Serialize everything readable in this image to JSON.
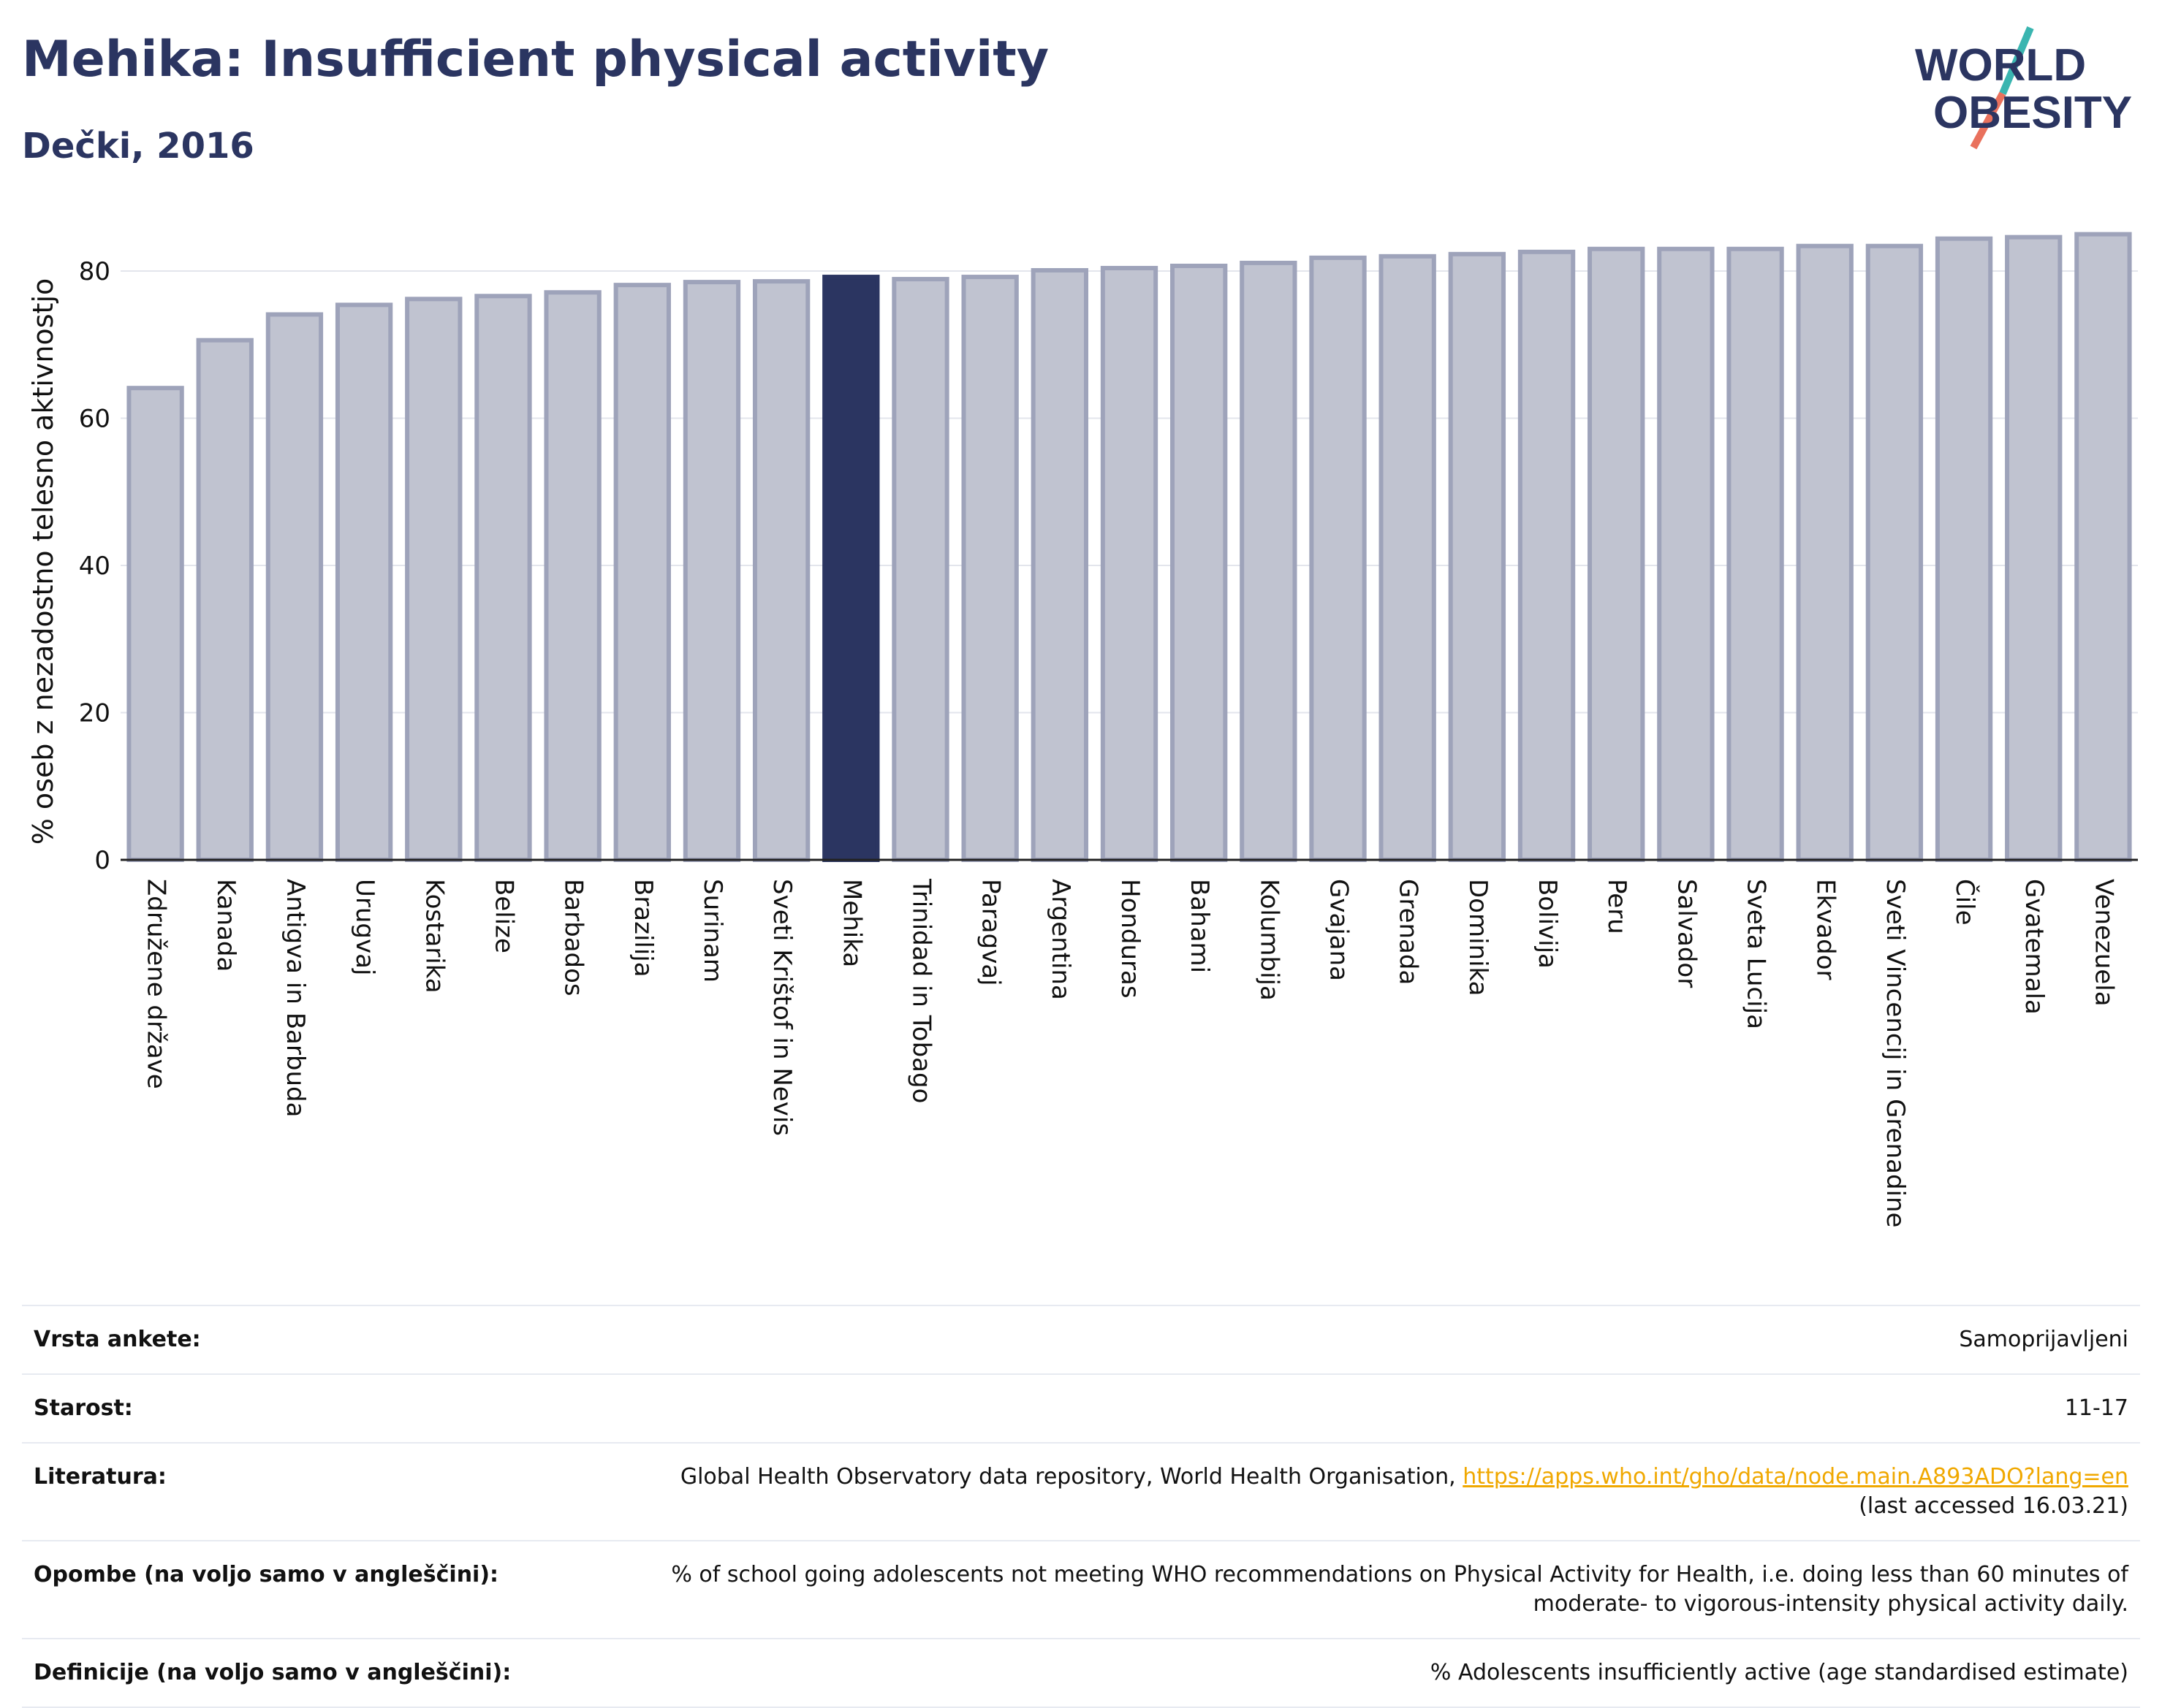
{
  "header": {
    "title": "Mehika: Insufficient physical activity",
    "subtitle": "Dečki, 2016"
  },
  "logo": {
    "line1": "WORLD",
    "line2": "OBESITY",
    "text_color": "#2b3561",
    "slash_teal": "#3ab5b0",
    "slash_coral": "#e9715d"
  },
  "colors": {
    "bar_default": "#c0c3d0",
    "bar_border": "#9ea3ba",
    "bar_highlight": "#2b3561",
    "axis_text": "#111111"
  },
  "chart_data": {
    "type": "bar",
    "ylabel": "% oseb z nezadostno telesno aktivnostjo",
    "ylim": [
      0,
      85
    ],
    "yticks": [
      0,
      20,
      40,
      60,
      80
    ],
    "grid": true,
    "highlight": "Mehika",
    "categories": [
      "Združene države",
      "Kanada",
      "Antigva in Barbuda",
      "Urugvaj",
      "Kostarika",
      "Belize",
      "Barbados",
      "Brazilija",
      "Surinam",
      "Sveti Krištof in Nevis",
      "Mehika",
      "Trinidad in Tobago",
      "Paragvaj",
      "Argentina",
      "Honduras",
      "Bahami",
      "Kolumbija",
      "Gvajana",
      "Grenada",
      "Dominika",
      "Bolivija",
      "Peru",
      "Salvador",
      "Sveta Lucija",
      "Ekvador",
      "Sveti Vincencij in Grenadine",
      "Čile",
      "Gvatemala",
      "Venezuela"
    ],
    "values": [
      64.1,
      70.6,
      74.1,
      75.4,
      76.2,
      76.6,
      77.1,
      78.1,
      78.5,
      78.6,
      79.2,
      78.9,
      79.2,
      80.1,
      80.4,
      80.7,
      81.1,
      81.8,
      82.0,
      82.3,
      82.6,
      83.0,
      83.0,
      83.0,
      83.4,
      83.4,
      84.4,
      84.6,
      85.0
    ]
  },
  "info": {
    "rows": [
      {
        "label": "Vrsta ankete:",
        "value": "Samoprijavljeni"
      },
      {
        "label": "Starost:",
        "value": "11-17"
      },
      {
        "label": "Literatura:",
        "value": "Global Health Observatory data repository, World Health Organisation,",
        "link": "https://apps.who.int/gho/data/node.main.A893ADO?lang=en",
        "value2": "(last accessed 16.03.21)"
      },
      {
        "label": "Opombe (na voljo samo v angleščini):",
        "value": "% of school going adolescents not meeting WHO recommendations on Physical Activity for Health, i.e. doing less than 60 minutes of moderate- to vigorous-intensity physical activity daily."
      },
      {
        "label": "Definicije (na voljo samo v angleščini):",
        "value": "% Adolescents insufficiently active (age standardised estimate)"
      }
    ]
  }
}
